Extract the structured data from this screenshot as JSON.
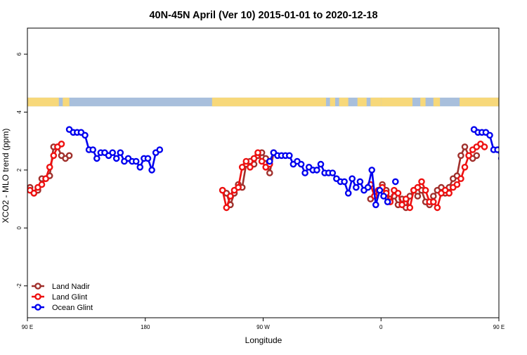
{
  "chart_data": {
    "type": "line",
    "title": "40N-45N April (Ver 10)   2015-01-01 to 2020-12-18",
    "xlabel": "Longitude",
    "ylabel": "XCO2 - MLO trend (ppm)",
    "xlim": [
      90,
      450
    ],
    "ylim": [
      -3.1,
      6.9
    ],
    "x_ticks": [
      {
        "value": 90,
        "label": "90 E"
      },
      {
        "value": 180,
        "label": "180"
      },
      {
        "value": 270,
        "label": "90 W"
      },
      {
        "value": 360,
        "label": "0"
      },
      {
        "value": 450,
        "label": "90 E"
      },
      {
        "value": 540,
        "label": "180"
      }
    ],
    "y_ticks": [
      {
        "value": -2,
        "label": "-2"
      },
      {
        "value": 0,
        "label": "0"
      },
      {
        "value": 2,
        "label": "2"
      },
      {
        "value": 4,
        "label": "4"
      },
      {
        "value": 6,
        "label": "6"
      }
    ],
    "grid": false,
    "legend_position": "bottom-left",
    "land_ocean_bar": {
      "y_range": [
        4.2,
        4.5
      ],
      "land_color": "#f7d87a",
      "ocean_color": "#a8bfdc",
      "land_segments": [
        [
          90,
          114
        ],
        [
          117,
          122
        ],
        [
          231,
          318
        ],
        [
          321,
          325
        ],
        [
          328,
          335
        ],
        [
          342,
          349
        ],
        [
          352,
          360
        ],
        [
          360,
          384
        ],
        [
          390,
          394
        ],
        [
          400,
          405
        ],
        [
          420,
          470
        ],
        [
          476,
          479
        ],
        [
          488,
          492
        ]
      ]
    },
    "series": [
      {
        "name": "Land Nadir",
        "color": "#a0302c",
        "segments": [
          [
            [
              92,
              1.4
            ],
            [
              95,
              1.2
            ],
            [
              98,
              1.3
            ],
            [
              101,
              1.7
            ],
            [
              104,
              1.7
            ],
            [
              107,
              1.8
            ],
            [
              110,
              2.8
            ],
            [
              113,
              2.8
            ],
            [
              116,
              2.5
            ],
            [
              119,
              2.4
            ],
            [
              122,
              2.5
            ]
          ],
          [
            [
              239,
              1.3
            ],
            [
              242,
              1.2
            ],
            [
              245,
              0.8
            ],
            [
              248,
              1.2
            ],
            [
              251,
              1.5
            ],
            [
              254,
              1.4
            ],
            [
              257,
              2.2
            ],
            [
              260,
              2.3
            ],
            [
              263,
              2.2
            ],
            [
              266,
              2.5
            ],
            [
              269,
              2.6
            ],
            [
              272,
              2.4
            ],
            [
              275,
              1.9
            ],
            [
              278,
              2.6
            ]
          ],
          [
            [
              352,
              1.0
            ],
            [
              355,
              1.1
            ],
            [
              358,
              1.3
            ],
            [
              361,
              1.5
            ],
            [
              364,
              1.3
            ],
            [
              367,
              1.0
            ],
            [
              370,
              1.1
            ],
            [
              373,
              0.8
            ],
            [
              376,
              1.0
            ],
            [
              379,
              0.7
            ],
            [
              382,
              1.1
            ],
            [
              385,
              1.3
            ],
            [
              388,
              1.1
            ],
            [
              391,
              1.3
            ],
            [
              394,
              0.9
            ],
            [
              397,
              0.8
            ],
            [
              400,
              1.1
            ],
            [
              403,
              1.3
            ],
            [
              406,
              1.4
            ],
            [
              409,
              1.2
            ],
            [
              412,
              1.4
            ],
            [
              415,
              1.7
            ],
            [
              418,
              1.8
            ],
            [
              421,
              2.5
            ],
            [
              424,
              2.8
            ],
            [
              427,
              2.5
            ],
            [
              430,
              2.4
            ],
            [
              433,
              2.5
            ]
          ]
        ]
      },
      {
        "name": "Land Glint",
        "color": "#ee1111",
        "segments": [
          [
            [
              92,
              1.3
            ],
            [
              95,
              1.2
            ],
            [
              98,
              1.4
            ],
            [
              101,
              1.5
            ],
            [
              104,
              1.7
            ],
            [
              107,
              2.1
            ],
            [
              110,
              2.5
            ],
            [
              113,
              2.8
            ],
            [
              116,
              2.9
            ]
          ],
          [
            [
              239,
              1.3
            ],
            [
              242,
              0.7
            ],
            [
              245,
              1.1
            ],
            [
              248,
              1.3
            ],
            [
              251,
              1.4
            ],
            [
              254,
              2.1
            ],
            [
              257,
              2.3
            ],
            [
              260,
              2.1
            ],
            [
              263,
              2.4
            ],
            [
              266,
              2.6
            ],
            [
              269,
              2.3
            ],
            [
              272,
              2.1
            ],
            [
              275,
              2.2
            ]
          ],
          [
            [
              352,
              1.5
            ],
            [
              355,
              1.1
            ],
            [
              358,
              1.3
            ],
            [
              361,
              1.4
            ],
            [
              364,
              1.2
            ],
            [
              367,
              0.9
            ],
            [
              370,
              1.3
            ],
            [
              373,
              1.2
            ],
            [
              376,
              0.8
            ],
            [
              379,
              1.0
            ],
            [
              382,
              0.7
            ],
            [
              385,
              1.3
            ],
            [
              388,
              1.4
            ],
            [
              391,
              1.6
            ],
            [
              394,
              1.3
            ],
            [
              397,
              0.9
            ],
            [
              400,
              0.9
            ],
            [
              403,
              0.7
            ],
            [
              406,
              1.2
            ],
            [
              409,
              1.3
            ],
            [
              412,
              1.2
            ],
            [
              415,
              1.4
            ],
            [
              418,
              1.5
            ],
            [
              421,
              1.7
            ],
            [
              424,
              2.1
            ],
            [
              427,
              2.5
            ],
            [
              430,
              2.7
            ],
            [
              433,
              2.8
            ],
            [
              436,
              2.9
            ],
            [
              439,
              2.8
            ]
          ]
        ]
      },
      {
        "name": "Ocean Glint",
        "color": "#0000ee",
        "segments": [
          [
            [
              122,
              3.4
            ],
            [
              125,
              3.3
            ],
            [
              128,
              3.3
            ],
            [
              131,
              3.3
            ],
            [
              134,
              3.2
            ],
            [
              137,
              2.7
            ],
            [
              140,
              2.7
            ],
            [
              143,
              2.4
            ],
            [
              146,
              2.6
            ],
            [
              149,
              2.6
            ],
            [
              152,
              2.5
            ],
            [
              155,
              2.6
            ],
            [
              158,
              2.4
            ],
            [
              161,
              2.6
            ],
            [
              164,
              2.3
            ],
            [
              167,
              2.4
            ],
            [
              170,
              2.3
            ],
            [
              173,
              2.3
            ],
            [
              176,
              2.1
            ],
            [
              179,
              2.4
            ],
            [
              182,
              2.4
            ],
            [
              185,
              2.0
            ],
            [
              188,
              2.6
            ],
            [
              191,
              2.7
            ]
          ],
          [
            [
              275,
              2.3
            ],
            [
              278,
              2.6
            ],
            [
              281,
              2.5
            ],
            [
              284,
              2.5
            ],
            [
              287,
              2.5
            ],
            [
              290,
              2.5
            ],
            [
              293,
              2.2
            ],
            [
              296,
              2.3
            ],
            [
              299,
              2.2
            ],
            [
              302,
              1.9
            ],
            [
              305,
              2.1
            ],
            [
              308,
              2.0
            ],
            [
              311,
              2.0
            ],
            [
              314,
              2.2
            ],
            [
              317,
              1.9
            ],
            [
              320,
              1.9
            ],
            [
              323,
              1.9
            ],
            [
              326,
              1.7
            ],
            [
              329,
              1.6
            ],
            [
              332,
              1.6
            ],
            [
              335,
              1.2
            ],
            [
              338,
              1.7
            ],
            [
              341,
              1.4
            ],
            [
              344,
              1.6
            ],
            [
              347,
              1.3
            ],
            [
              350,
              1.4
            ],
            [
              353,
              2.0
            ],
            [
              356,
              0.8
            ],
            [
              359,
              1.3
            ],
            [
              362,
              1.1
            ],
            [
              365,
              0.9
            ]
          ],
          [
            [
              371,
              1.6
            ]
          ],
          [
            [
              431,
              3.4
            ],
            [
              434,
              3.3
            ],
            [
              437,
              3.3
            ],
            [
              440,
              3.3
            ],
            [
              443,
              3.2
            ],
            [
              446,
              2.7
            ],
            [
              449,
              2.7
            ],
            [
              452,
              2.4
            ],
            [
              455,
              2.6
            ],
            [
              458,
              2.6
            ],
            [
              461,
              2.5
            ],
            [
              464,
              2.6
            ]
          ]
        ]
      }
    ]
  }
}
